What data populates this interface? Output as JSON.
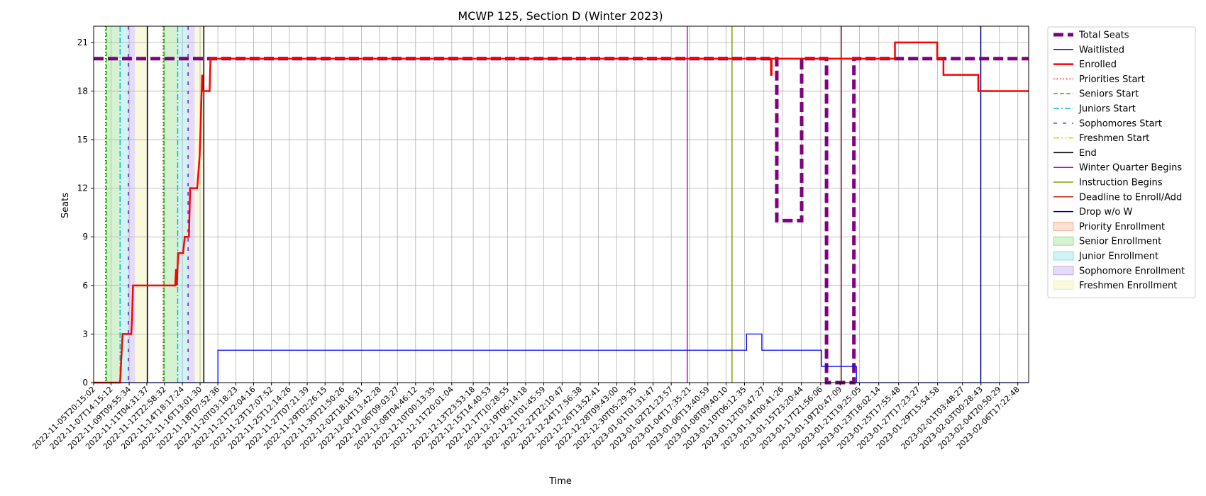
{
  "chart_data": {
    "type": "line",
    "title": "MCWP 125, Section D (Winter 2023)",
    "xlabel": "Time",
    "ylabel": "Seats",
    "ylim": [
      0,
      22
    ],
    "yticks": [
      0,
      3,
      6,
      9,
      12,
      15,
      18,
      21
    ],
    "grid": true,
    "legend_position": "outside-right",
    "x_range": [
      "2022-11-05T20:15:02",
      "2023-02-07T19:30:00"
    ],
    "xticks": [
      "2022-11-05T20:15:02",
      "2022-11-07T14:15:12",
      "2022-11-09T09:55:34",
      "2022-11-11T04:31:37",
      "2022-11-12T22:58:32",
      "2022-11-14T18:17:24",
      "2022-11-16T13:01:30",
      "2022-11-18T07:52:36",
      "2022-11-20T03:18:23",
      "2022-11-21T22:04:16",
      "2022-11-23T17:07:52",
      "2022-11-25T12:14:26",
      "2022-11-27T07:21:39",
      "2022-11-29T02:26:15",
      "2022-11-30T21:50:26",
      "2022-12-02T18:16:31",
      "2022-12-04T13:42:28",
      "2022-12-06T09:03:27",
      "2022-12-08T04:46:12",
      "2022-12-10T00:13:35",
      "2022-12-11T20:01:04",
      "2022-12-13T23:53:18",
      "2022-12-15T14:40:53",
      "2022-12-17T10:28:55",
      "2022-12-19T06:14:18",
      "2022-12-21T01:45:59",
      "2022-12-22T22:10:47",
      "2022-12-24T17:56:38",
      "2022-12-26T13:52:41",
      "2022-12-28T09:43:00",
      "2022-12-30T05:29:35",
      "2023-01-01T01:31:47",
      "2023-01-02T21:23:57",
      "2023-01-04T17:35:21",
      "2023-01-06T13:40:59",
      "2023-01-08T09:40:10",
      "2023-01-10T06:12:35",
      "2023-01-12T03:47:27",
      "2023-01-14T00:41:26",
      "2023-01-15T23:20:44",
      "2023-01-17T21:56:06",
      "2023-01-19T20:47:09",
      "2023-01-21T19:25:05",
      "2023-01-23T18:02:14",
      "2023-01-25T17:55:48",
      "2023-01-27T17:23:27",
      "2023-01-29T15:54:58",
      "2023-02-01T03:48:27",
      "2023-02-03T00:28:43",
      "2023-02-04T20:50:29",
      "2023-02-06T17:22:48"
    ],
    "series": [
      {
        "name": "Total Seats",
        "color": "#800080",
        "dash": "dashed-thick",
        "points": [
          [
            "2022-11-05T20:15:02",
            20
          ],
          [
            "2023-01-13T12:00:00",
            20
          ],
          [
            "2023-01-13T12:00:00",
            10
          ],
          [
            "2023-01-16T00:00:00",
            10
          ],
          [
            "2023-01-16T00:00:00",
            20
          ],
          [
            "2023-01-18T12:00:00",
            20
          ],
          [
            "2023-01-18T12:00:00",
            0
          ],
          [
            "2023-01-21T06:00:00",
            0
          ],
          [
            "2023-01-21T06:00:00",
            20
          ],
          [
            "2023-02-07T19:30:00",
            20
          ]
        ]
      },
      {
        "name": "Waitlisted",
        "color": "#0000ff",
        "dash": "solid",
        "points": [
          [
            "2022-11-05T20:15:02",
            0
          ],
          [
            "2022-11-18T08:00:00",
            0
          ],
          [
            "2022-11-18T08:00:00",
            2
          ],
          [
            "2023-01-10T11:00:00",
            2
          ],
          [
            "2023-01-10T11:00:00",
            3
          ],
          [
            "2023-01-12T00:00:00",
            3
          ],
          [
            "2023-01-12T00:00:00",
            2
          ],
          [
            "2023-01-18T00:00:00",
            2
          ],
          [
            "2023-01-18T00:00:00",
            1
          ],
          [
            "2023-01-21T12:00:00",
            1
          ],
          [
            "2023-01-21T12:00:00",
            0
          ],
          [
            "2023-02-07T19:30:00",
            0
          ]
        ]
      },
      {
        "name": "Enrolled",
        "color": "#ff0000",
        "dash": "solid",
        "points": [
          [
            "2022-11-05T20:15:02",
            0
          ],
          [
            "2022-11-08T12:00:00",
            0
          ],
          [
            "2022-11-08T14:00:00",
            1
          ],
          [
            "2022-11-08T16:00:00",
            2
          ],
          [
            "2022-11-08T18:00:00",
            3
          ],
          [
            "2022-11-09T15:00:00",
            3
          ],
          [
            "2022-11-09T17:00:00",
            4
          ],
          [
            "2022-11-09T19:00:00",
            6
          ],
          [
            "2022-11-14T01:00:00",
            6
          ],
          [
            "2022-11-14T03:00:00",
            7
          ],
          [
            "2022-11-14T05:00:00",
            6
          ],
          [
            "2022-11-14T08:00:00",
            8
          ],
          [
            "2022-11-14T20:00:00",
            8
          ],
          [
            "2022-11-15T00:00:00",
            9
          ],
          [
            "2022-11-15T10:00:00",
            9
          ],
          [
            "2022-11-15T13:00:00",
            12
          ],
          [
            "2022-11-16T06:00:00",
            12
          ],
          [
            "2022-11-16T12:00:00",
            14
          ],
          [
            "2022-11-16T18:00:00",
            19
          ],
          [
            "2022-11-16T20:00:00",
            18
          ],
          [
            "2022-11-17T12:00:00",
            18
          ],
          [
            "2022-11-17T14:00:00",
            20
          ],
          [
            "2023-01-12T22:00:00",
            20
          ],
          [
            "2023-01-12T22:00:00",
            19
          ],
          [
            "2023-01-12T23:30:00",
            19
          ],
          [
            "2023-01-12T23:30:00",
            20
          ],
          [
            "2023-01-25T09:00:00",
            20
          ],
          [
            "2023-01-25T09:00:00",
            21
          ],
          [
            "2023-01-29T15:00:00",
            21
          ],
          [
            "2023-01-29T15:00:00",
            20
          ],
          [
            "2023-01-30T06:00:00",
            20
          ],
          [
            "2023-01-30T06:00:00",
            19
          ],
          [
            "2023-02-02T18:00:00",
            19
          ],
          [
            "2023-02-02T18:00:00",
            18
          ],
          [
            "2023-02-07T19:30:00",
            18
          ]
        ]
      }
    ],
    "vlines": [
      {
        "name": "Priorities Start",
        "color": "#ff0000",
        "dash": "dotted",
        "at": [
          "2022-11-07T01:00:00",
          "2022-11-12T20:00:00"
        ]
      },
      {
        "name": "Seniors Start",
        "color": "#00cc00",
        "dash": "dashed",
        "at": [
          "2022-11-07T03:00:00",
          "2022-11-12T22:00:00"
        ]
      },
      {
        "name": "Juniors Start",
        "color": "#00bfbf",
        "dash": "dashdot",
        "at": [
          "2022-11-08T12:00:00",
          "2022-11-14T07:00:00"
        ]
      },
      {
        "name": "Sophomores Start",
        "color": "#6020e0",
        "dash": "loosedash",
        "at": [
          "2022-11-09T08:00:00",
          "2022-11-15T08:00:00"
        ]
      },
      {
        "name": "Freshmen Start",
        "color": "#e0d000",
        "dash": "dashdotdot",
        "at": []
      },
      {
        "name": "End",
        "color": "#000000",
        "dash": "solid",
        "at": [
          "2022-11-11T06:00:00",
          "2022-11-16T22:00:00"
        ]
      },
      {
        "name": "Winter Quarter Begins",
        "color": "#cc00cc",
        "dash": "solid",
        "at": [
          "2023-01-04T12:00:00"
        ]
      },
      {
        "name": "Instruction Begins",
        "color": "#80a000",
        "dash": "solid",
        "at": [
          "2023-01-09T00:00:00"
        ]
      },
      {
        "name": "Deadline to Enroll/Add",
        "color": "#cc2200",
        "dash": "solid",
        "at": [
          "2023-01-20T00:00:00"
        ]
      },
      {
        "name": "Drop w/o W",
        "color": "#000080",
        "dash": "solid",
        "at": [
          "2023-02-03T00:00:00"
        ]
      }
    ],
    "spans": [
      {
        "name": "Priority Enrollment",
        "color": "#f4a582",
        "ranges": [
          [
            "2022-11-07T01:00:00",
            "2022-11-07T03:00:00"
          ],
          [
            "2022-11-12T20:00:00",
            "2022-11-12T22:00:00"
          ]
        ]
      },
      {
        "name": "Senior Enrollment",
        "color": "#88dd77",
        "ranges": [
          [
            "2022-11-07T03:00:00",
            "2022-11-08T12:00:00"
          ],
          [
            "2022-11-12T22:00:00",
            "2022-11-14T07:00:00"
          ]
        ]
      },
      {
        "name": "Junior Enrollment",
        "color": "#77dddd",
        "ranges": [
          [
            "2022-11-08T12:00:00",
            "2022-11-09T08:00:00"
          ],
          [
            "2022-11-14T07:00:00",
            "2022-11-15T08:00:00"
          ]
        ]
      },
      {
        "name": "Sophomore Enrollment",
        "color": "#b79ae8",
        "ranges": [
          [
            "2022-11-09T08:00:00",
            "2022-11-10T00:00:00"
          ],
          [
            "2022-11-15T08:00:00",
            "2022-11-16T00:00:00"
          ]
        ]
      },
      {
        "name": "Freshmen Enrollment",
        "color": "#eeee99",
        "ranges": [
          [
            "2022-11-10T00:00:00",
            "2022-11-11T06:00:00"
          ],
          [
            "2022-11-16T00:00:00",
            "2022-11-16T22:00:00"
          ]
        ]
      }
    ],
    "legend": [
      {
        "label": "Total Seats",
        "kind": "line",
        "color": "#800080",
        "dash": "dashed-thick"
      },
      {
        "label": "Waitlisted",
        "kind": "line",
        "color": "#0000ff",
        "dash": "solid"
      },
      {
        "label": "Enrolled",
        "kind": "line",
        "color": "#ff0000",
        "dash": "solid-thick"
      },
      {
        "label": "Priorities Start",
        "kind": "line",
        "color": "#ff0000",
        "dash": "dotted"
      },
      {
        "label": "Seniors Start",
        "kind": "line",
        "color": "#00cc00",
        "dash": "dashed"
      },
      {
        "label": "Juniors Start",
        "kind": "line",
        "color": "#00bfbf",
        "dash": "dashdot"
      },
      {
        "label": "Sophomores Start",
        "kind": "line",
        "color": "#6020e0",
        "dash": "loosedash"
      },
      {
        "label": "Freshmen Start",
        "kind": "line",
        "color": "#e0d000",
        "dash": "dashdotdot"
      },
      {
        "label": "End",
        "kind": "line",
        "color": "#000000",
        "dash": "solid"
      },
      {
        "label": "Winter Quarter Begins",
        "kind": "line",
        "color": "#cc00cc",
        "dash": "solid"
      },
      {
        "label": "Instruction Begins",
        "kind": "line",
        "color": "#80a000",
        "dash": "solid"
      },
      {
        "label": "Deadline to Enroll/Add",
        "kind": "line",
        "color": "#cc2200",
        "dash": "solid"
      },
      {
        "label": "Drop w/o W",
        "kind": "line",
        "color": "#000080",
        "dash": "solid"
      },
      {
        "label": "Priority Enrollment",
        "kind": "patch",
        "color": "#f4a582"
      },
      {
        "label": "Senior Enrollment",
        "kind": "patch",
        "color": "#88dd77"
      },
      {
        "label": "Junior Enrollment",
        "kind": "patch",
        "color": "#77dddd"
      },
      {
        "label": "Sophomore Enrollment",
        "kind": "patch",
        "color": "#b79ae8"
      },
      {
        "label": "Freshmen Enrollment",
        "kind": "patch",
        "color": "#eeee99"
      }
    ]
  }
}
